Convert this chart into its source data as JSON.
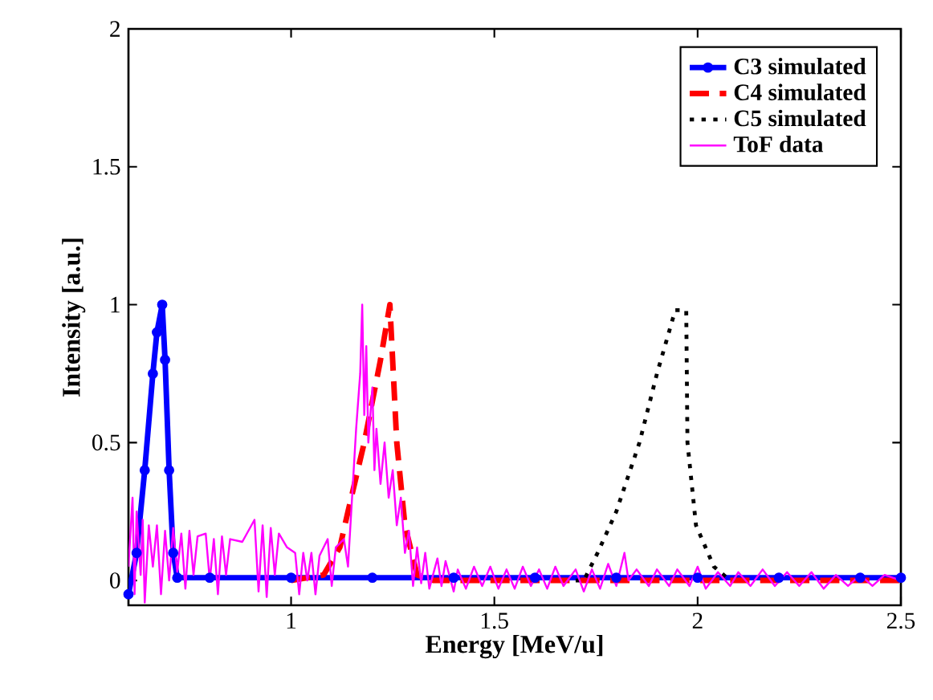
{
  "chart_data": {
    "type": "line",
    "xlabel": "Energy [MeV/u]",
    "ylabel": "Intensity [a.u.]",
    "xlim": [
      0.6,
      2.5
    ],
    "ylim": [
      -0.09,
      2
    ],
    "xticks": [
      1,
      1.5,
      2,
      2.5
    ],
    "yticks": [
      0,
      0.5,
      1,
      1.5,
      2
    ],
    "grid": false,
    "legend": "top right",
    "series": [
      {
        "name": "C3 simulated",
        "color": "#0000ff",
        "line_style": "solid",
        "marker": "circle",
        "x": [
          0.6,
          0.62,
          0.64,
          0.66,
          0.67,
          0.683,
          0.69,
          0.7,
          0.71,
          0.72,
          0.8,
          1.0,
          1.2,
          1.4,
          1.6,
          1.8,
          2.0,
          2.2,
          2.4,
          2.5
        ],
        "values": [
          -0.05,
          0.1,
          0.4,
          0.75,
          0.9,
          1,
          0.8,
          0.4,
          0.1,
          0.01,
          0.01,
          0.01,
          0.01,
          0.01,
          0.01,
          0.01,
          0.01,
          0.01,
          0.01,
          0.01
        ]
      },
      {
        "name": "C4 simulated",
        "color": "#ff0000",
        "line_style": "dashed",
        "marker": "none",
        "x": [
          1.0,
          1.08,
          1.12,
          1.14,
          1.18,
          1.22,
          1.243,
          1.26,
          1.28,
          1.31,
          1.35,
          1.6,
          2.0,
          2.5
        ],
        "values": [
          0,
          0.02,
          0.12,
          0.25,
          0.5,
          0.8,
          1,
          0.5,
          0.2,
          0.02,
          0,
          0,
          0,
          0
        ]
      },
      {
        "name": "C5 simulated",
        "color": "#000000",
        "line_style": "dotted",
        "marker": "none",
        "x": [
          1.7,
          1.72,
          1.754,
          1.8,
          1.857,
          1.9,
          1.945,
          1.972,
          1.975,
          1.996,
          2.04,
          2.08
        ],
        "values": [
          0,
          0,
          0.1,
          0.25,
          0.5,
          0.75,
          0.98,
          0.98,
          0.5,
          0.2,
          0.05,
          0
        ]
      },
      {
        "name": "ToF data",
        "color": "#ff00ff",
        "line_style": "solid",
        "marker": "none",
        "x": [
          0.6,
          0.61,
          0.615,
          0.62,
          0.63,
          0.635,
          0.64,
          0.65,
          0.66,
          0.67,
          0.68,
          0.69,
          0.7,
          0.71,
          0.72,
          0.73,
          0.74,
          0.75,
          0.76,
          0.77,
          0.78,
          0.79,
          0.8,
          0.81,
          0.82,
          0.83,
          0.84,
          0.85,
          0.86,
          0.88,
          0.89,
          0.91,
          0.92,
          0.93,
          0.94,
          0.95,
          0.96,
          0.97,
          0.98,
          0.99,
          1.0,
          1.01,
          1.02,
          1.03,
          1.04,
          1.05,
          1.06,
          1.07,
          1.08,
          1.09,
          1.1,
          1.11,
          1.12,
          1.13,
          1.14,
          1.15,
          1.16,
          1.17,
          1.175,
          1.18,
          1.185,
          1.19,
          1.2,
          1.205,
          1.21,
          1.22,
          1.23,
          1.24,
          1.25,
          1.26,
          1.27,
          1.28,
          1.29,
          1.3,
          1.31,
          1.32,
          1.33,
          1.34,
          1.36,
          1.37,
          1.38,
          1.4,
          1.41,
          1.43,
          1.45,
          1.47,
          1.49,
          1.51,
          1.53,
          1.55,
          1.57,
          1.59,
          1.61,
          1.63,
          1.65,
          1.67,
          1.7,
          1.72,
          1.74,
          1.76,
          1.78,
          1.8,
          1.82,
          1.83,
          1.85,
          1.88,
          1.9,
          1.93,
          1.95,
          1.98,
          2.0,
          2.02,
          2.05,
          2.08,
          2.1,
          2.13,
          2.16,
          2.19,
          2.22,
          2.25,
          2.28,
          2.31,
          2.34,
          2.37,
          2.4,
          2.43,
          2.46,
          2.5
        ],
        "values": [
          0.05,
          0.3,
          -0.05,
          0.25,
          0.02,
          0.22,
          -0.08,
          0.2,
          0.05,
          0.2,
          -0.05,
          0.18,
          0.0,
          0.19,
          0.03,
          0.17,
          -0.03,
          0.18,
          0.02,
          0.16,
          null,
          0.17,
          0.0,
          0.15,
          -0.05,
          0.16,
          0.02,
          0.15,
          null,
          0.14,
          null,
          0.22,
          -0.04,
          0.2,
          -0.06,
          0.19,
          0.02,
          0.17,
          null,
          0.12,
          null,
          0.1,
          -0.05,
          0.1,
          0.0,
          0.1,
          -0.05,
          0.09,
          null,
          0.15,
          -0.02,
          0.12,
          null,
          0.15,
          0.05,
          0.3,
          0.55,
          0.75,
          1.0,
          0.6,
          0.85,
          0.5,
          0.7,
          0.4,
          0.55,
          0.35,
          0.5,
          0.3,
          0.4,
          0.2,
          0.3,
          0.1,
          0.18,
          -0.02,
          0.12,
          -0.01,
          0.1,
          -0.03,
          0.08,
          -0.02,
          0.07,
          -0.04,
          0.04,
          -0.03,
          0.05,
          -0.02,
          0.05,
          -0.03,
          0.04,
          -0.03,
          0.05,
          -0.02,
          0.04,
          -0.03,
          0.05,
          -0.02,
          0.04,
          -0.04,
          0.04,
          -0.03,
          0.06,
          -0.02,
          0.1,
          0.0,
          0.04,
          -0.02,
          0.04,
          -0.02,
          0.04,
          -0.02,
          0.05,
          -0.03,
          0.03,
          -0.02,
          0.03,
          -0.02,
          0.04,
          -0.02,
          0.03,
          -0.02,
          0.03,
          -0.03,
          0.02,
          -0.02,
          0.02,
          -0.02,
          0.02,
          0.0
        ]
      }
    ]
  }
}
